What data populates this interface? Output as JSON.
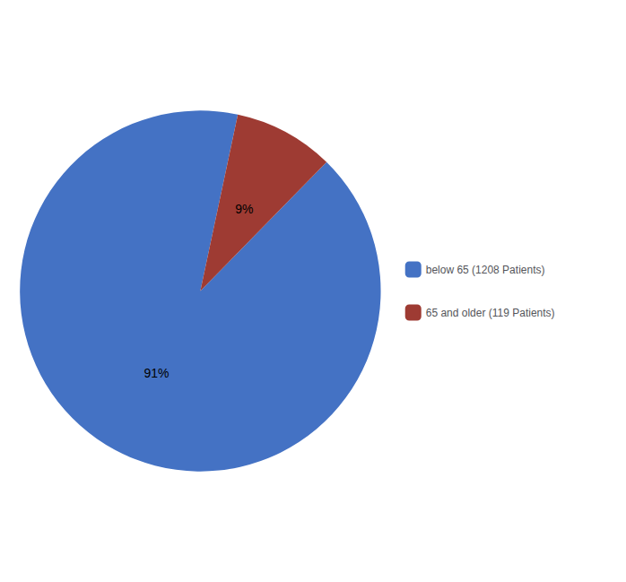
{
  "chart_data": {
    "type": "pie",
    "categories": [
      "below 65 (1208 Patients)",
      "65 and older (119 Patients)"
    ],
    "values": [
      91,
      9
    ],
    "value_labels": [
      "91%",
      "9%"
    ],
    "colors": [
      "#4472C4",
      "#9E3B33"
    ],
    "data_labels": true,
    "legend": "right"
  }
}
